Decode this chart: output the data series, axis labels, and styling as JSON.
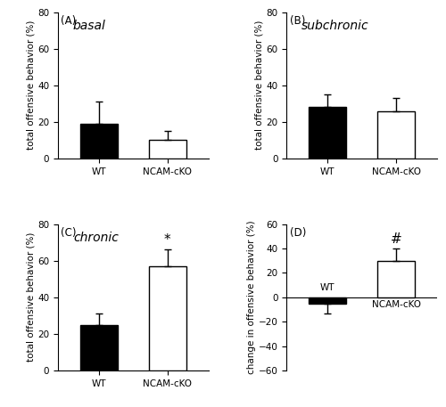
{
  "panels": {
    "A": {
      "label": "(A)",
      "title": "basal",
      "ylabel": "total offensive behavior (%)",
      "ylim": [
        0,
        80
      ],
      "yticks": [
        0,
        20,
        40,
        60,
        80
      ],
      "categories": [
        "WT",
        "NCAM-cKO"
      ],
      "values": [
        19,
        10
      ],
      "errors": [
        12,
        5
      ],
      "colors": [
        "black",
        "white"
      ],
      "sig_labels": [
        "",
        ""
      ]
    },
    "B": {
      "label": "(B)",
      "title": "subchronic",
      "ylabel": "total offensive behavior (%)",
      "ylim": [
        0,
        80
      ],
      "yticks": [
        0,
        20,
        40,
        60,
        80
      ],
      "categories": [
        "WT",
        "NCAM-cKO"
      ],
      "values": [
        28,
        26
      ],
      "errors": [
        7,
        7
      ],
      "colors": [
        "black",
        "white"
      ],
      "sig_labels": [
        "",
        ""
      ]
    },
    "C": {
      "label": "(C)",
      "title": "chronic",
      "ylabel": "total offensive behavior (%)",
      "ylim": [
        0,
        80
      ],
      "yticks": [
        0,
        20,
        40,
        60,
        80
      ],
      "categories": [
        "WT",
        "NCAM-cKO"
      ],
      "values": [
        25,
        57
      ],
      "errors": [
        6,
        9
      ],
      "colors": [
        "black",
        "white"
      ],
      "sig_labels": [
        "",
        "*"
      ]
    },
    "D": {
      "label": "(D)",
      "title": "",
      "ylabel": "change in offensive behavior (%)",
      "ylim": [
        -60,
        60
      ],
      "yticks": [
        -60,
        -40,
        -20,
        0,
        20,
        40,
        60
      ],
      "categories": [
        "WT",
        "NCAM-cKO"
      ],
      "values": [
        -5,
        30
      ],
      "errors": [
        8,
        10
      ],
      "colors": [
        "black",
        "white"
      ],
      "sig_labels": [
        "",
        "#"
      ]
    }
  },
  "bar_width": 0.55,
  "label_fontsize": 7.5,
  "tick_fontsize": 7.5,
  "title_fontsize": 10,
  "sig_fontsize": 11,
  "panel_label_fontsize": 8.5
}
